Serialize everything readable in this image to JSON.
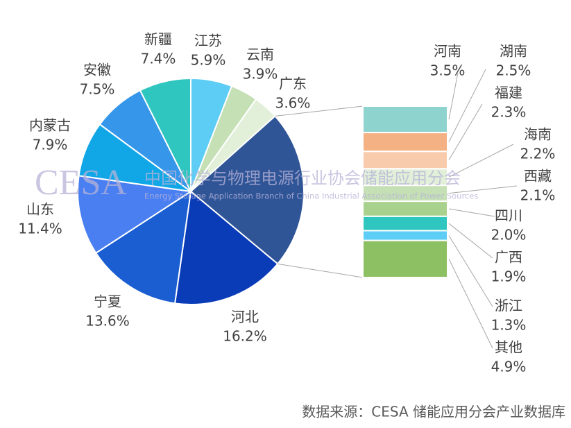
{
  "chart_data": {
    "type": "pie-of-bar",
    "pie": {
      "categories": [
        "江苏",
        "云南",
        "广东",
        null,
        "河北",
        "宁夏",
        "山东",
        "内蒙古",
        "安徽",
        "新疆"
      ],
      "values": [
        5.9,
        3.9,
        3.6,
        null,
        16.2,
        13.6,
        11.4,
        7.9,
        7.5,
        7.4
      ],
      "value_labels": [
        "5.9%",
        "3.9%",
        "3.6%",
        null,
        "16.2%",
        "13.6%",
        "11.4%",
        "7.9%",
        "7.5%",
        "7.4%"
      ],
      "colors": [
        "#5dcdf6",
        "#c5e0b4",
        "#e2f0d9",
        "#2f5597",
        "#0a3cb8",
        "#1a5ed2",
        "#4a7ff2",
        "#11a7e7",
        "#3596ea",
        "#2fc6bf"
      ]
    },
    "bar": {
      "categories": [
        "河南",
        "湖南",
        "福建",
        "海南",
        "西藏",
        "四川",
        "广西",
        "浙江",
        "其他"
      ],
      "values": [
        3.5,
        2.5,
        2.3,
        2.2,
        2.1,
        2.0,
        1.9,
        1.3,
        4.9
      ],
      "value_labels": [
        "3.5%",
        "2.5%",
        "2.3%",
        "2.2%",
        "2.1%",
        "2.0%",
        "1.9%",
        "1.3%",
        "4.9%"
      ],
      "colors": [
        "#8fd3cf",
        "#f4b183",
        "#f8cbad",
        "#e2f0d9",
        "#c5e0b4",
        "#a9d18e",
        "#2fc6bf",
        "#5dcdf6",
        "#8cc063"
      ]
    },
    "watermark": {
      "logo": "CESA",
      "name": "中国化学与物理电源行业协会储能应用分会",
      "name_en": "Energy Storage Application Branch of China Industrial Association of Power Sources"
    },
    "source": "数据来源：CESA 储能应用分会产业数据库"
  }
}
